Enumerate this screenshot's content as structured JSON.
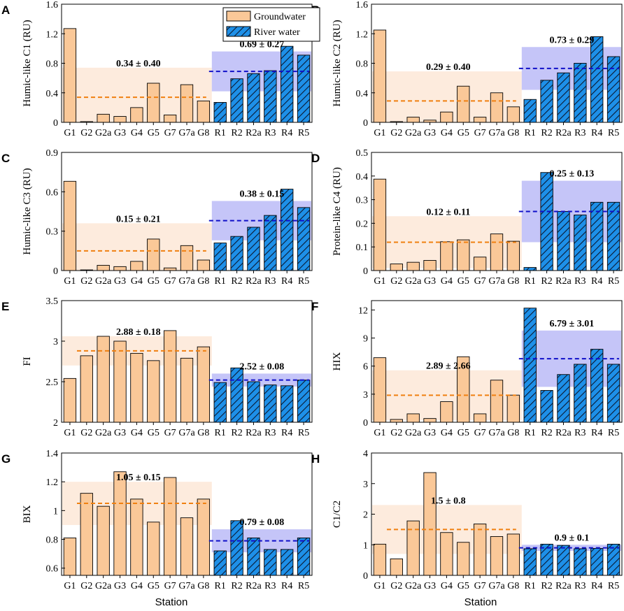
{
  "figure": {
    "x_axis_title": "Station"
  },
  "legend": {
    "groundwater": "Groundwater",
    "river": "River water"
  },
  "colors": {
    "groundwater": "#FAC898",
    "groundwater_band": "#FDEBDD",
    "river": "#1E90E8",
    "river_band": "#C5C5F8",
    "gw_mean": "#F08010",
    "rv_mean": "#1010C8"
  },
  "chart_data": [
    {
      "panel": "A",
      "type": "bar",
      "ylabel": "Humic-like C1 (RU)",
      "categories": [
        "G1",
        "G2",
        "G2a",
        "G3",
        "G4",
        "G5",
        "G7",
        "G7a",
        "G8",
        "R1",
        "R2",
        "R2a",
        "R3",
        "R4",
        "R5"
      ],
      "groundwater": [
        1.27,
        0.01,
        0.11,
        0.08,
        0.2,
        0.53,
        0.1,
        0.51,
        0.29
      ],
      "river": [
        0.27,
        0.59,
        0.66,
        0.7,
        1.03,
        0.91
      ],
      "ylim": [
        0,
        1.6
      ],
      "yticks": [
        0,
        0.4,
        0.8,
        1.2,
        1.6
      ],
      "ytick_labels": [
        "0",
        "0.4",
        "0.8",
        "1.2",
        "1.6"
      ],
      "gw_mean": 0.34,
      "gw_sd": 0.4,
      "gw_label": "0.34 ± 0.40",
      "rv_mean": 0.69,
      "rv_sd": 0.27,
      "rv_label": "0.69 ± 0.27",
      "gw_band": [
        0,
        0.74
      ],
      "rv_band": [
        0.42,
        0.96
      ]
    },
    {
      "panel": "B",
      "type": "bar",
      "ylabel": "Humic-like C2 (RU)",
      "categories": [
        "G1",
        "G2",
        "G2a",
        "G3",
        "G4",
        "G5",
        "G7",
        "G7a",
        "G8",
        "R1",
        "R2",
        "R2a",
        "R3",
        "R4",
        "R5"
      ],
      "groundwater": [
        1.25,
        0.01,
        0.07,
        0.03,
        0.14,
        0.49,
        0.07,
        0.4,
        0.21
      ],
      "river": [
        0.31,
        0.57,
        0.67,
        0.8,
        1.16,
        0.89
      ],
      "ylim": [
        0,
        1.6
      ],
      "yticks": [
        0,
        0.4,
        0.8,
        1.2,
        1.6
      ],
      "ytick_labels": [
        "0",
        "0.4",
        "0.8",
        "1.2",
        "1.6"
      ],
      "gw_mean": 0.29,
      "gw_sd": 0.4,
      "gw_label": "0.29 ± 0.40",
      "rv_mean": 0.73,
      "rv_sd": 0.29,
      "rv_label": "0.73 ± 0.29",
      "gw_band": [
        0,
        0.69
      ],
      "rv_band": [
        0.44,
        1.02
      ]
    },
    {
      "panel": "C",
      "type": "bar",
      "ylabel": "Humic-like C3 (RU)",
      "categories": [
        "G1",
        "G2",
        "G2a",
        "G3",
        "G4",
        "G5",
        "G7",
        "G7a",
        "G8",
        "R1",
        "R2",
        "R2a",
        "R3",
        "R4",
        "R5"
      ],
      "groundwater": [
        0.68,
        0.005,
        0.04,
        0.03,
        0.07,
        0.24,
        0.02,
        0.19,
        0.08
      ],
      "river": [
        0.21,
        0.26,
        0.33,
        0.42,
        0.62,
        0.48
      ],
      "ylim": [
        0,
        0.9
      ],
      "yticks": [
        0,
        0.3,
        0.6,
        0.9
      ],
      "ytick_labels": [
        "0",
        "0.3",
        "0.6",
        "0.9"
      ],
      "gw_mean": 0.15,
      "gw_sd": 0.21,
      "gw_label": "0.15 ± 0.21",
      "rv_mean": 0.38,
      "rv_sd": 0.15,
      "rv_label": "0.38 ± 0.15",
      "gw_band": [
        0,
        0.36
      ],
      "rv_band": [
        0.23,
        0.53
      ]
    },
    {
      "panel": "D",
      "type": "bar",
      "ylabel": "Protein-like C4 (RU)",
      "categories": [
        "G1",
        "G2",
        "G2a",
        "G3",
        "G4",
        "G5",
        "G7",
        "G7a",
        "G8",
        "R1",
        "R2",
        "R2a",
        "R3",
        "R4",
        "R5"
      ],
      "groundwater": [
        0.387,
        0.028,
        0.035,
        0.043,
        0.122,
        0.13,
        0.057,
        0.155,
        0.124
      ],
      "river": [
        0.013,
        0.415,
        0.25,
        0.235,
        0.289,
        0.289
      ],
      "ylim": [
        0,
        0.5
      ],
      "yticks": [
        0,
        0.1,
        0.2,
        0.3,
        0.4,
        0.5
      ],
      "ytick_labels": [
        "0",
        "0.1",
        "0.2",
        "0.3",
        "0.4",
        "0.5"
      ],
      "gw_mean": 0.12,
      "gw_sd": 0.11,
      "gw_label": "0.12 ± 0.11",
      "rv_mean": 0.25,
      "rv_sd": 0.13,
      "rv_label": "0.25 ± 0.13",
      "gw_band": [
        0.01,
        0.23
      ],
      "rv_band": [
        0.12,
        0.38
      ]
    },
    {
      "panel": "E",
      "type": "bar",
      "ylabel": "FI",
      "categories": [
        "G1",
        "G2",
        "G2a",
        "G3",
        "G4",
        "G5",
        "G7",
        "G7a",
        "G8",
        "R1",
        "R2",
        "R2a",
        "R3",
        "R4",
        "R5"
      ],
      "groundwater": [
        2.54,
        2.82,
        3.06,
        3.0,
        2.85,
        2.76,
        3.13,
        2.79,
        2.93
      ],
      "river": [
        2.49,
        2.67,
        2.5,
        2.46,
        2.45,
        2.52
      ],
      "ylim": [
        2,
        3.5
      ],
      "yticks": [
        2,
        2.5,
        3,
        3.5
      ],
      "ytick_labels": [
        "2",
        "2.5",
        "3",
        "3.5"
      ],
      "gw_mean": 2.88,
      "gw_sd": 0.18,
      "gw_label": "2.88 ± 0.18",
      "rv_mean": 2.52,
      "rv_sd": 0.08,
      "rv_label": "2.52 ± 0.08",
      "gw_band": [
        2.7,
        3.06
      ],
      "rv_band": [
        2.44,
        2.6
      ]
    },
    {
      "panel": "F",
      "type": "bar",
      "ylabel": "HIX",
      "categories": [
        "G1",
        "G2",
        "G2a",
        "G3",
        "G4",
        "G5",
        "G7",
        "G7a",
        "G8",
        "R1",
        "R2",
        "R2a",
        "R3",
        "R4",
        "R5"
      ],
      "groundwater": [
        6.9,
        0.3,
        0.9,
        0.4,
        2.2,
        7.0,
        0.9,
        4.5,
        2.9
      ],
      "river": [
        12.2,
        3.4,
        5.1,
        6.2,
        7.8,
        6.2
      ],
      "ylim": [
        0,
        13
      ],
      "yticks": [
        0,
        3,
        6,
        9,
        12
      ],
      "ytick_labels": [
        "0",
        "3",
        "6",
        "9",
        "12"
      ],
      "gw_mean": 2.89,
      "gw_sd": 2.66,
      "gw_label": "2.89 ± 2.66",
      "rv_mean": 6.79,
      "rv_sd": 3.01,
      "rv_label": "6.79 ± 3.01",
      "gw_band": [
        0.23,
        5.55
      ],
      "rv_band": [
        3.78,
        9.8
      ]
    },
    {
      "panel": "G",
      "type": "bar",
      "ylabel": "BIX",
      "categories": [
        "G1",
        "G2",
        "G2a",
        "G3",
        "G4",
        "G5",
        "G7",
        "G7a",
        "G8",
        "R1",
        "R2",
        "R2a",
        "R3",
        "R4",
        "R5"
      ],
      "groundwater": [
        0.81,
        1.12,
        1.03,
        1.27,
        1.08,
        0.92,
        1.23,
        0.95,
        1.08
      ],
      "river": [
        0.72,
        0.93,
        0.81,
        0.73,
        0.73,
        0.81
      ],
      "ylim": [
        0.55,
        1.4
      ],
      "yticks": [
        0.6,
        0.8,
        1,
        1.2,
        1.4
      ],
      "ytick_labels": [
        "0.6",
        "0.8",
        "1",
        "1.2",
        "1.4"
      ],
      "gw_mean": 1.05,
      "gw_sd": 0.15,
      "gw_label": "1.05 ± 0.15",
      "rv_mean": 0.79,
      "rv_sd": 0.08,
      "rv_label": "0.79 ± 0.08",
      "gw_band": [
        0.9,
        1.2
      ],
      "rv_band": [
        0.71,
        0.87
      ]
    },
    {
      "panel": "H",
      "type": "bar",
      "ylabel": "C1/C2",
      "categories": [
        "G1",
        "G2",
        "G2a",
        "G3",
        "G4",
        "G5",
        "G7",
        "G7a",
        "G8",
        "R1",
        "R2",
        "R2a",
        "R3",
        "R4",
        "R5"
      ],
      "groundwater": [
        1.02,
        0.54,
        1.78,
        3.36,
        1.4,
        1.08,
        1.68,
        1.27,
        1.35
      ],
      "river": [
        0.87,
        1.02,
        0.98,
        0.87,
        0.88,
        1.02
      ],
      "ylim": [
        0,
        4
      ],
      "yticks": [
        0,
        1,
        2,
        3,
        4
      ],
      "ytick_labels": [
        "0",
        "1",
        "2",
        "3",
        "4"
      ],
      "gw_mean": 1.5,
      "gw_sd": 0.8,
      "gw_label": "1.5 ± 0.8",
      "rv_mean": 0.9,
      "rv_sd": 0.1,
      "rv_label": "0.9 ± 0.1",
      "gw_band": [
        0.7,
        2.3
      ],
      "rv_band": [
        0.8,
        1.0
      ]
    }
  ]
}
